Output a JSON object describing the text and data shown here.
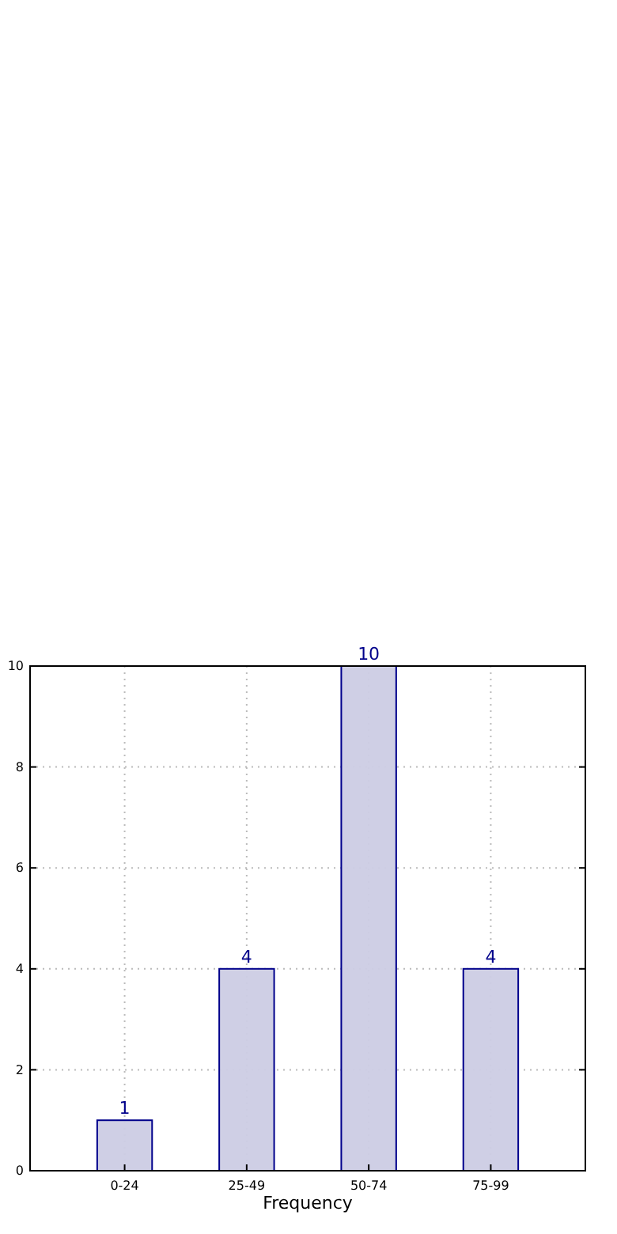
{
  "chart_data": {
    "type": "bar",
    "xlabel": "Frequency",
    "categories": [
      "0-24",
      "25-49",
      "50-74",
      "75-99"
    ],
    "series": [
      {
        "color": "#cccce4",
        "values": [
          1,
          4,
          10,
          4
        ]
      }
    ],
    "ylim": [
      0,
      10
    ],
    "yticks": [
      0,
      2,
      4,
      6,
      8,
      10
    ],
    "grid": true,
    "data_labels": true
  }
}
